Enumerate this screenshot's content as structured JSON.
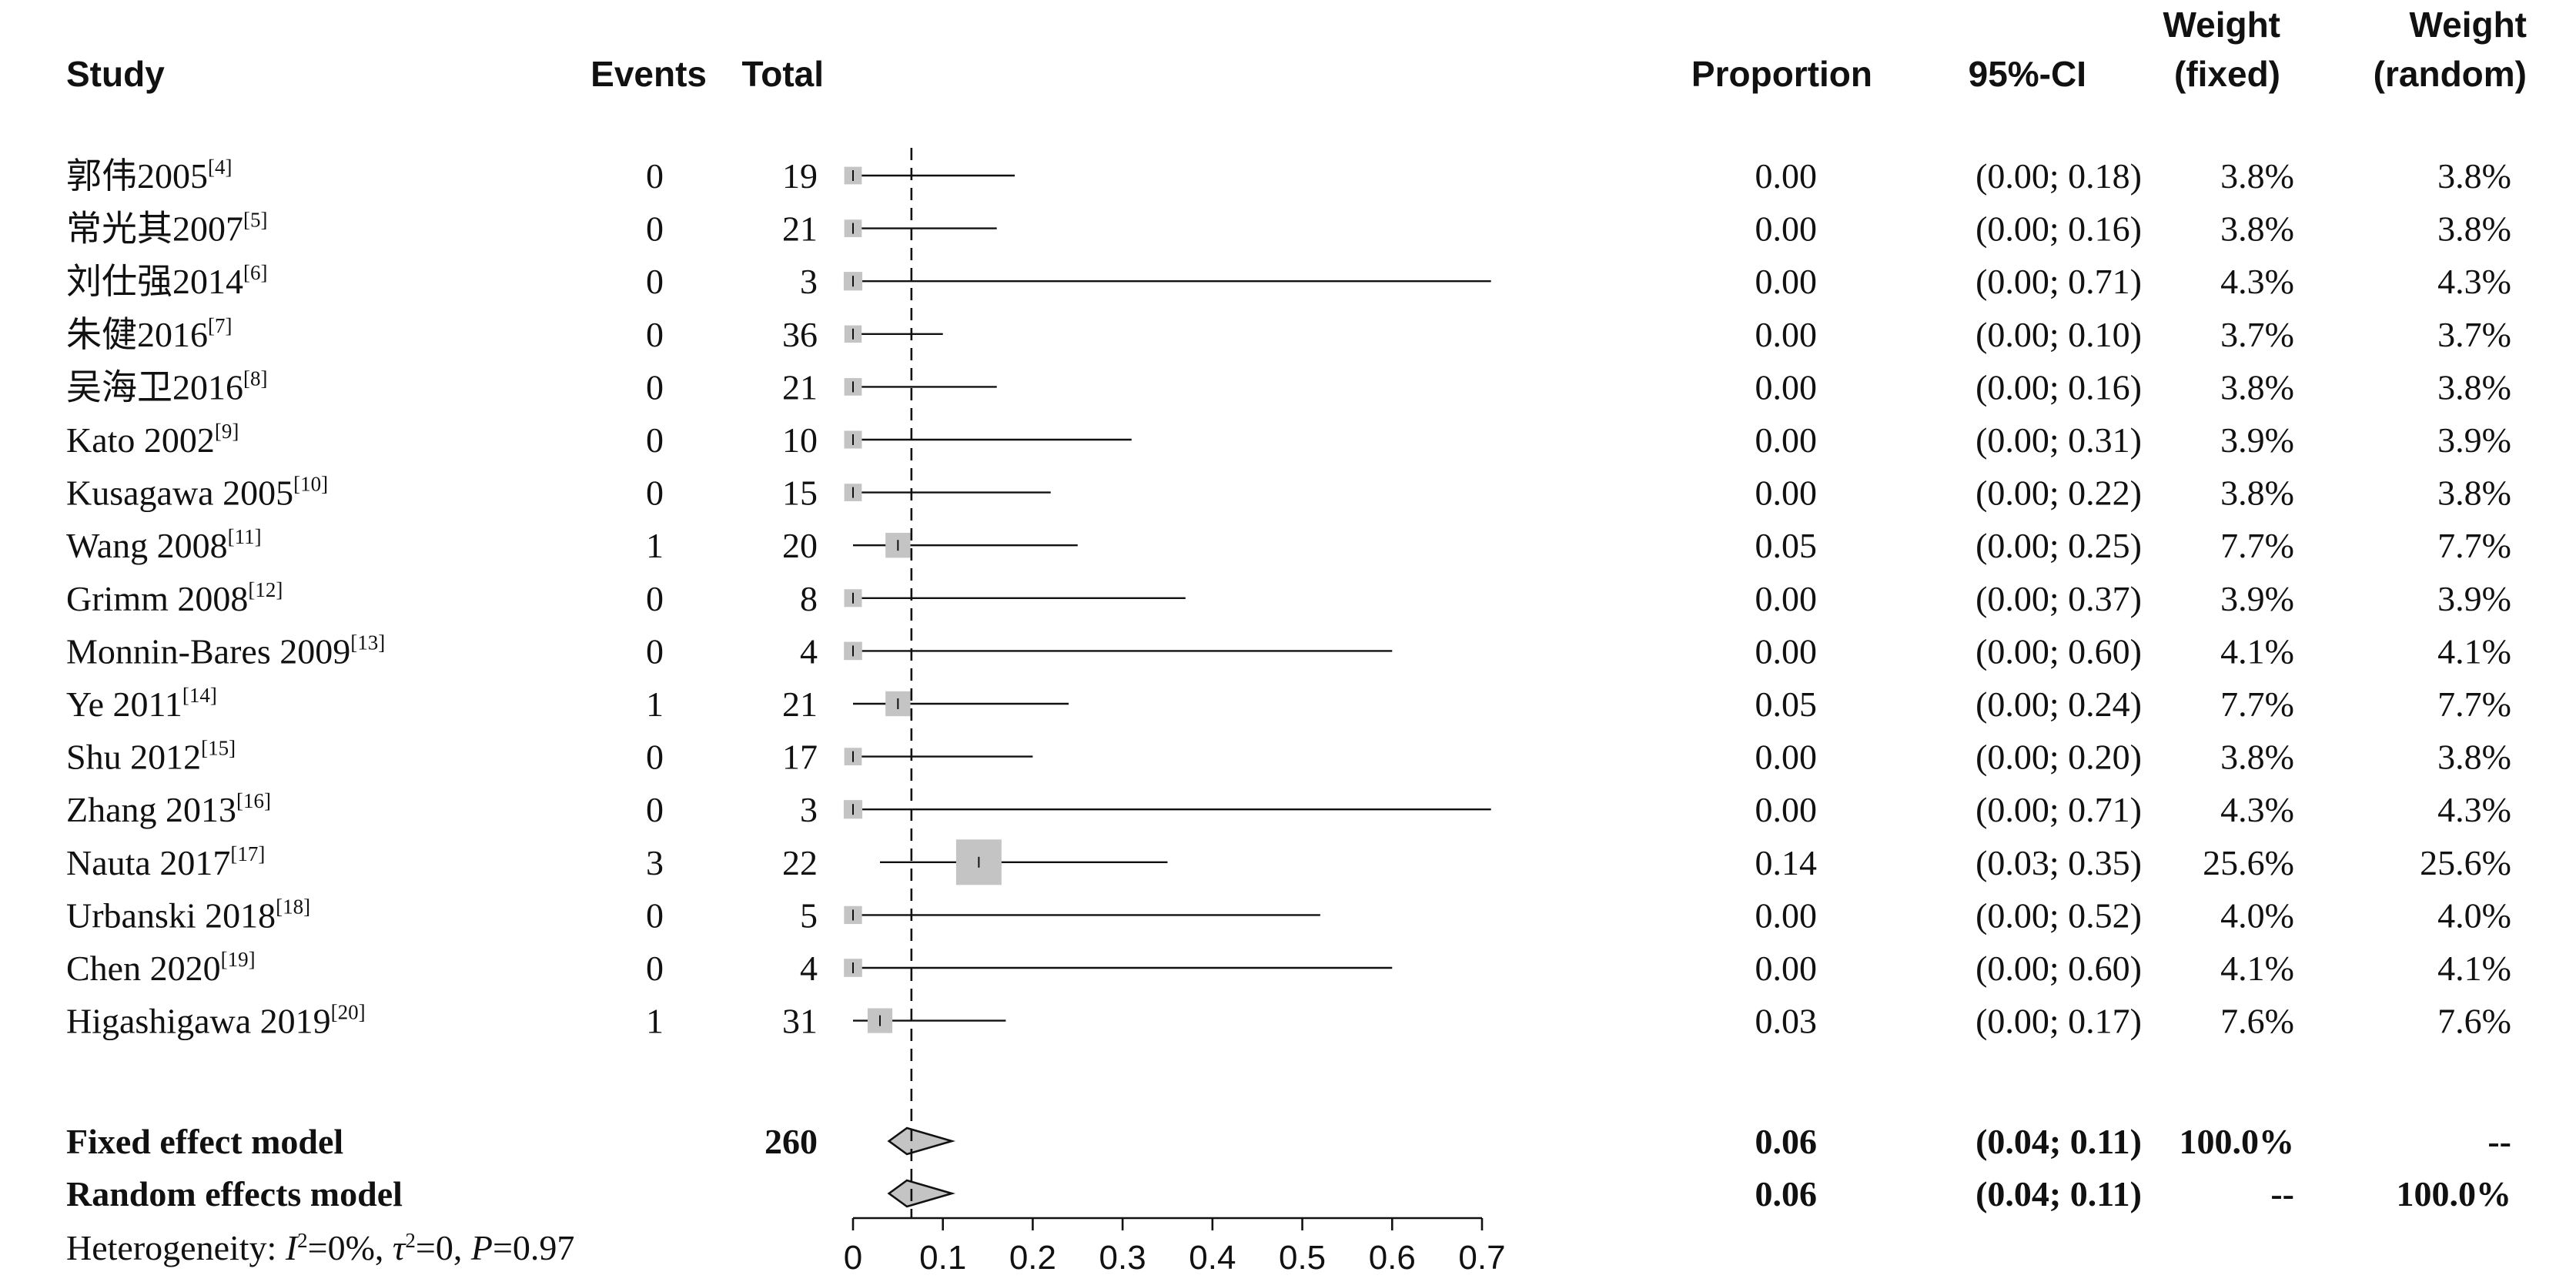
{
  "chart_data": {
    "type": "forest",
    "headers": {
      "study": "Study",
      "events": "Events",
      "total": "Total",
      "proportion": "Proportion",
      "ci": "95%-CI",
      "weight_fixed": [
        "Weight",
        "(fixed)"
      ],
      "weight_random": [
        "Weight",
        "(random)"
      ]
    },
    "studies": [
      {
        "name": "郭伟2005",
        "ref": "[4]",
        "events": "0",
        "total": "19",
        "proportion": 0.0,
        "ci_low": 0.0,
        "ci_high": 0.18,
        "weight_fixed": 3.8,
        "weight_random": 3.8,
        "prop_text": "0.00",
        "ci_text": "(0.00; 0.18)",
        "wf_text": "3.8%",
        "wr_text": "3.8%"
      },
      {
        "name": "常光其2007",
        "ref": "[5]",
        "events": "0",
        "total": "21",
        "proportion": 0.0,
        "ci_low": 0.0,
        "ci_high": 0.16,
        "weight_fixed": 3.8,
        "weight_random": 3.8,
        "prop_text": "0.00",
        "ci_text": "(0.00; 0.16)",
        "wf_text": "3.8%",
        "wr_text": "3.8%"
      },
      {
        "name": "刘仕强2014",
        "ref": "[6]",
        "events": "0",
        "total": "3",
        "proportion": 0.0,
        "ci_low": 0.0,
        "ci_high": 0.71,
        "weight_fixed": 4.3,
        "weight_random": 4.3,
        "prop_text": "0.00",
        "ci_text": "(0.00; 0.71)",
        "wf_text": "4.3%",
        "wr_text": "4.3%"
      },
      {
        "name": "朱健2016",
        "ref": "[7]",
        "events": "0",
        "total": "36",
        "proportion": 0.0,
        "ci_low": 0.0,
        "ci_high": 0.1,
        "weight_fixed": 3.7,
        "weight_random": 3.7,
        "prop_text": "0.00",
        "ci_text": "(0.00; 0.10)",
        "wf_text": "3.7%",
        "wr_text": "3.7%"
      },
      {
        "name": "吴海卫2016",
        "ref": "[8]",
        "events": "0",
        "total": "21",
        "proportion": 0.0,
        "ci_low": 0.0,
        "ci_high": 0.16,
        "weight_fixed": 3.8,
        "weight_random": 3.8,
        "prop_text": "0.00",
        "ci_text": "(0.00; 0.16)",
        "wf_text": "3.8%",
        "wr_text": "3.8%"
      },
      {
        "name": "Kato 2002",
        "ref": "[9]",
        "events": "0",
        "total": "10",
        "proportion": 0.0,
        "ci_low": 0.0,
        "ci_high": 0.31,
        "weight_fixed": 3.9,
        "weight_random": 3.9,
        "prop_text": "0.00",
        "ci_text": "(0.00; 0.31)",
        "wf_text": "3.9%",
        "wr_text": "3.9%"
      },
      {
        "name": "Kusagawa 2005",
        "ref": "[10]",
        "events": "0",
        "total": "15",
        "proportion": 0.0,
        "ci_low": 0.0,
        "ci_high": 0.22,
        "weight_fixed": 3.8,
        "weight_random": 3.8,
        "prop_text": "0.00",
        "ci_text": "(0.00; 0.22)",
        "wf_text": "3.8%",
        "wr_text": "3.8%"
      },
      {
        "name": "Wang 2008",
        "ref": "[11]",
        "events": "1",
        "total": "20",
        "proportion": 0.05,
        "ci_low": 0.0,
        "ci_high": 0.25,
        "weight_fixed": 7.7,
        "weight_random": 7.7,
        "prop_text": "0.05",
        "ci_text": "(0.00; 0.25)",
        "wf_text": "7.7%",
        "wr_text": "7.7%"
      },
      {
        "name": "Grimm 2008",
        "ref": "[12]",
        "events": "0",
        "total": "8",
        "proportion": 0.0,
        "ci_low": 0.0,
        "ci_high": 0.37,
        "weight_fixed": 3.9,
        "weight_random": 3.9,
        "prop_text": "0.00",
        "ci_text": "(0.00; 0.37)",
        "wf_text": "3.9%",
        "wr_text": "3.9%"
      },
      {
        "name": "Monnin-Bares 2009",
        "ref": "[13]",
        "events": "0",
        "total": "4",
        "proportion": 0.0,
        "ci_low": 0.0,
        "ci_high": 0.6,
        "weight_fixed": 4.1,
        "weight_random": 4.1,
        "prop_text": "0.00",
        "ci_text": "(0.00; 0.60)",
        "wf_text": "4.1%",
        "wr_text": "4.1%"
      },
      {
        "name": "Ye 2011",
        "ref": "[14]",
        "events": "1",
        "total": "21",
        "proportion": 0.05,
        "ci_low": 0.0,
        "ci_high": 0.24,
        "weight_fixed": 7.7,
        "weight_random": 7.7,
        "prop_text": "0.05",
        "ci_text": "(0.00; 0.24)",
        "wf_text": "7.7%",
        "wr_text": "7.7%"
      },
      {
        "name": "Shu 2012",
        "ref": "[15]",
        "events": "0",
        "total": "17",
        "proportion": 0.0,
        "ci_low": 0.0,
        "ci_high": 0.2,
        "weight_fixed": 3.8,
        "weight_random": 3.8,
        "prop_text": "0.00",
        "ci_text": "(0.00; 0.20)",
        "wf_text": "3.8%",
        "wr_text": "3.8%"
      },
      {
        "name": "Zhang 2013",
        "ref": "[16]",
        "events": "0",
        "total": "3",
        "proportion": 0.0,
        "ci_low": 0.0,
        "ci_high": 0.71,
        "weight_fixed": 4.3,
        "weight_random": 4.3,
        "prop_text": "0.00",
        "ci_text": "(0.00; 0.71)",
        "wf_text": "4.3%",
        "wr_text": "4.3%"
      },
      {
        "name": "Nauta 2017",
        "ref": "[17]",
        "events": "3",
        "total": "22",
        "proportion": 0.14,
        "ci_low": 0.03,
        "ci_high": 0.35,
        "weight_fixed": 25.6,
        "weight_random": 25.6,
        "prop_text": "0.14",
        "ci_text": "(0.03; 0.35)",
        "wf_text": "25.6%",
        "wr_text": "25.6%"
      },
      {
        "name": "Urbanski 2018",
        "ref": "[18]",
        "events": "0",
        "total": "5",
        "proportion": 0.0,
        "ci_low": 0.0,
        "ci_high": 0.52,
        "weight_fixed": 4.0,
        "weight_random": 4.0,
        "prop_text": "0.00",
        "ci_text": "(0.00; 0.52)",
        "wf_text": "4.0%",
        "wr_text": "4.0%"
      },
      {
        "name": "Chen 2020",
        "ref": "[19]",
        "events": "0",
        "total": "4",
        "proportion": 0.0,
        "ci_low": 0.0,
        "ci_high": 0.6,
        "weight_fixed": 4.1,
        "weight_random": 4.1,
        "prop_text": "0.00",
        "ci_text": "(0.00; 0.60)",
        "wf_text": "4.1%",
        "wr_text": "4.1%"
      },
      {
        "name": "Higashigawa 2019",
        "ref": "[20]",
        "events": "1",
        "total": "31",
        "proportion": 0.03,
        "ci_low": 0.0,
        "ci_high": 0.17,
        "weight_fixed": 7.6,
        "weight_random": 7.6,
        "prop_text": "0.03",
        "ci_text": "(0.00; 0.17)",
        "wf_text": "7.6%",
        "wr_text": "7.6%"
      }
    ],
    "summary": [
      {
        "name": "Fixed effect model",
        "total": "260",
        "proportion": 0.06,
        "ci_low": 0.04,
        "ci_high": 0.11,
        "prop_text": "0.06",
        "ci_text": "(0.04; 0.11)",
        "wf_text": "100.0%",
        "wr_text": "--"
      },
      {
        "name": "Random effects model",
        "total": "",
        "proportion": 0.06,
        "ci_low": 0.04,
        "ci_high": 0.11,
        "prop_text": "0.06",
        "ci_text": "(0.04; 0.11)",
        "wf_text": "--",
        "wr_text": "100.0%"
      }
    ],
    "heterogeneity": {
      "prefix": "Heterogeneity: ",
      "i2_value": "=0%, ",
      "tau2_value": "=0, ",
      "p_value": "=0.97"
    },
    "x_ticks": [
      "0",
      "0.1",
      "0.2",
      "0.3",
      "0.4",
      "0.5",
      "0.6",
      "0.7"
    ],
    "xlim": [
      0,
      0.7
    ],
    "reference_line": 0.065
  }
}
